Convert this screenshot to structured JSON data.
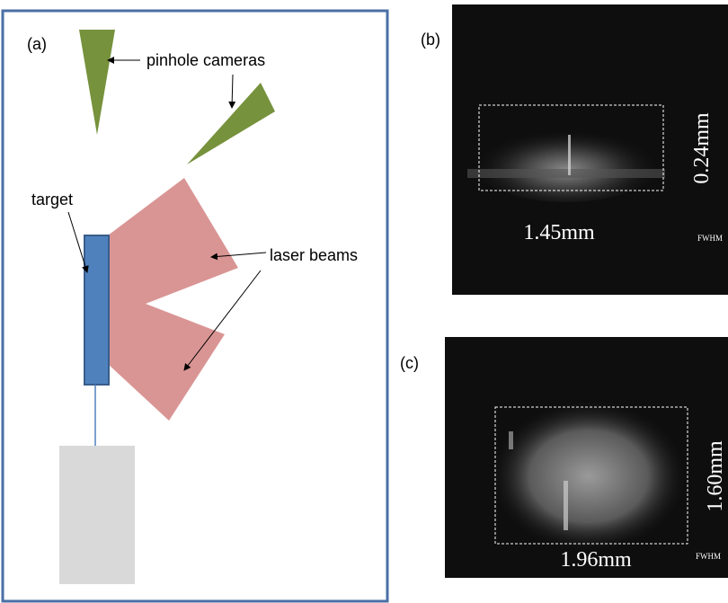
{
  "panel_a": {
    "label": "(a)",
    "cameras": "pinhole cameras",
    "target": "target",
    "beams": "laser beams"
  },
  "panel_b": {
    "label": "(b)",
    "height": "0.24mm",
    "width": "1.45mm",
    "note": "FWHM"
  },
  "panel_c": {
    "label": "(c)",
    "height": "1.60mm",
    "width": "1.96mm",
    "note": "FWHM"
  }
}
